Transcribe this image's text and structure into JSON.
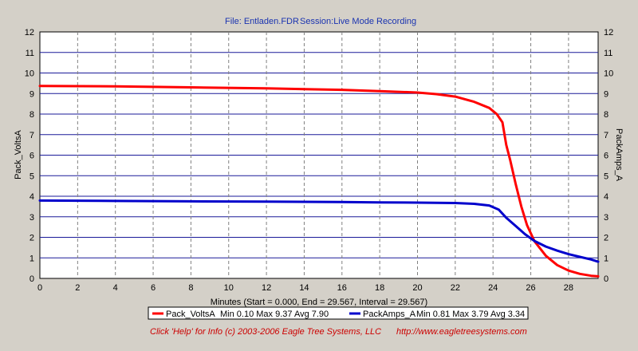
{
  "header": {
    "file_label": "File: Entladen.FDR",
    "session_label": "Session:Live Mode Recording"
  },
  "chart_data": {
    "type": "line",
    "xlabel": "Minutes (Start = 0.000,  End = 29.567,  Interval =  29.567)",
    "ylabel_left": "Pack_VoltsA",
    "ylabel_right": "PackAmps_A",
    "xlim": [
      0,
      29.567
    ],
    "ylim": [
      0,
      12
    ],
    "x_ticks": [
      0,
      2,
      4,
      6,
      8,
      10,
      12,
      14,
      16,
      18,
      20,
      22,
      24,
      26,
      28
    ],
    "y_ticks": [
      0,
      1,
      2,
      3,
      4,
      5,
      6,
      7,
      8,
      9,
      10,
      11,
      12
    ],
    "grid": true,
    "legend_position": "bottom",
    "series": [
      {
        "name": "Pack_VoltsA",
        "color": "#ff0000",
        "stats": "Min 0.10   Max 9.37    Avg 7.90",
        "x": [
          0,
          4,
          8,
          12,
          16,
          18,
          20,
          21,
          22,
          23,
          23.8,
          24.2,
          24.5,
          24.7,
          24.9,
          25.2,
          25.5,
          25.8,
          26.2,
          26.8,
          27.4,
          28,
          28.6,
          29.2,
          29.567
        ],
        "y": [
          9.37,
          9.35,
          9.3,
          9.25,
          9.18,
          9.12,
          9.05,
          8.97,
          8.85,
          8.6,
          8.3,
          8.0,
          7.6,
          6.5,
          5.8,
          4.6,
          3.5,
          2.6,
          1.8,
          1.1,
          0.65,
          0.38,
          0.22,
          0.13,
          0.1
        ]
      },
      {
        "name": "PackAmps_A",
        "color": "#0000cc",
        "stats": "Min 0.81   Max 3.79   Avg 3.34",
        "x": [
          0,
          4,
          8,
          12,
          16,
          18,
          20,
          22,
          23,
          23.8,
          24.3,
          24.7,
          25.2,
          25.7,
          26.2,
          26.8,
          27.4,
          28,
          28.6,
          29.2,
          29.567
        ],
        "y": [
          3.79,
          3.77,
          3.75,
          3.74,
          3.72,
          3.7,
          3.69,
          3.67,
          3.63,
          3.55,
          3.35,
          2.95,
          2.55,
          2.15,
          1.82,
          1.55,
          1.35,
          1.18,
          1.05,
          0.92,
          0.81
        ]
      }
    ]
  },
  "footer": {
    "help_text": "Click 'Help' for Info  (c) 2003-2006 Eagle Tree Systems, LLC",
    "url_text": "http://www.eagletreesystems.com"
  }
}
